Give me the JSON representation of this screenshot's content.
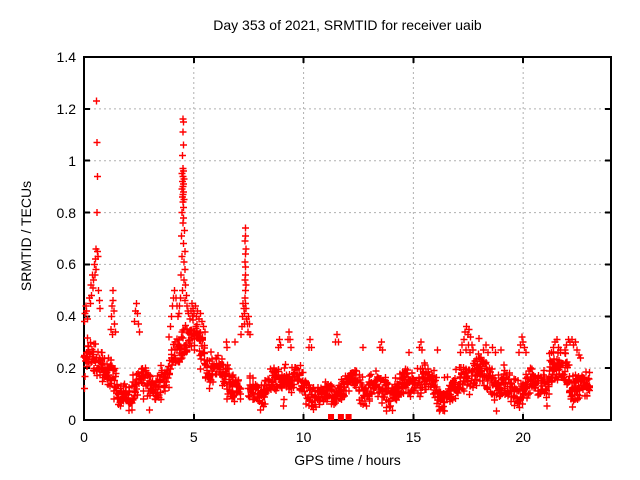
{
  "window": {
    "title": "Day 353 of 2021, SRMTID for receiver uaib"
  },
  "colors": {
    "marker": "#ff0000",
    "grid": "#b0b0b0",
    "frame": "#000000",
    "background": "#ffffff",
    "text": "#000000"
  },
  "chart_data": {
    "type": "scatter",
    "title": "Day 353 of 2021, SRMTID for receiver uaib",
    "xlabel": "GPS time / hours",
    "ylabel": "SRMTID / TECUs",
    "xlim": [
      0,
      24
    ],
    "ylim": [
      0,
      1.4
    ],
    "x_ticks": [
      0,
      5,
      10,
      15,
      20
    ],
    "x_tick_labels": [
      "0",
      "5",
      "10",
      "15",
      "20"
    ],
    "y_ticks": [
      0,
      0.2,
      0.4,
      0.6,
      0.8,
      1,
      1.2,
      1.4
    ],
    "y_tick_labels": [
      "0",
      "0.2",
      "0.4",
      "0.6",
      "0.8",
      "1",
      "1.2",
      "1.4"
    ],
    "grid": "dotted",
    "legend": "none",
    "marker": "plus",
    "marker_color": "#ff0000",
    "data_start_hour": 0.0,
    "data_end_hour": 23.05,
    "zero_value_squares_x": [
      11.25,
      11.7,
      12.05
    ],
    "notable_points": [
      [
        0.57,
        1.23
      ],
      [
        0.6,
        1.07
      ],
      [
        0.62,
        0.94
      ],
      [
        0.6,
        0.8
      ],
      [
        0.55,
        0.66
      ],
      [
        0.61,
        0.65
      ],
      [
        0.64,
        0.63
      ],
      [
        0.52,
        0.62
      ],
      [
        0.48,
        0.6
      ],
      [
        0.55,
        0.58
      ],
      [
        0.5,
        0.56
      ],
      [
        0.44,
        0.54
      ],
      [
        0.4,
        0.51
      ],
      [
        0.35,
        0.48
      ],
      [
        0.3,
        0.45
      ],
      [
        0.26,
        0.47
      ],
      [
        0.33,
        0.52
      ],
      [
        0.38,
        0.56
      ],
      [
        0.66,
        0.5
      ],
      [
        0.7,
        0.46
      ],
      [
        0.74,
        0.43
      ],
      [
        0.05,
        0.41
      ],
      [
        0.08,
        0.44
      ],
      [
        0.12,
        0.42
      ],
      [
        0.03,
        0.38
      ],
      [
        0.17,
        0.39
      ],
      [
        1.22,
        0.35
      ],
      [
        1.25,
        0.4
      ],
      [
        1.28,
        0.44
      ],
      [
        1.31,
        0.5
      ],
      [
        1.33,
        0.46
      ],
      [
        1.36,
        0.42
      ],
      [
        1.39,
        0.37
      ],
      [
        1.3,
        0.33
      ],
      [
        1.43,
        0.34
      ],
      [
        2.3,
        0.38
      ],
      [
        2.35,
        0.42
      ],
      [
        2.4,
        0.45
      ],
      [
        2.44,
        0.41
      ],
      [
        2.48,
        0.37
      ],
      [
        2.52,
        0.34
      ],
      [
        3.88,
        0.32
      ],
      [
        3.93,
        0.36
      ],
      [
        3.98,
        0.4
      ],
      [
        4.03,
        0.44
      ],
      [
        4.08,
        0.47
      ],
      [
        4.13,
        0.5
      ],
      [
        4.18,
        0.47
      ],
      [
        4.23,
        0.44
      ],
      [
        4.27,
        0.4
      ],
      [
        4.5,
        1.16
      ],
      [
        4.54,
        1.15
      ],
      [
        4.5,
        1.11
      ],
      [
        4.52,
        1.06
      ],
      [
        4.49,
        1.02
      ],
      [
        4.5,
        0.97
      ],
      [
        4.53,
        0.96
      ],
      [
        4.47,
        0.95
      ],
      [
        4.51,
        0.94
      ],
      [
        4.55,
        0.93
      ],
      [
        4.49,
        0.92
      ],
      [
        4.52,
        0.91
      ],
      [
        4.5,
        0.9
      ],
      [
        4.46,
        0.89
      ],
      [
        4.53,
        0.88
      ],
      [
        4.51,
        0.87
      ],
      [
        4.48,
        0.86
      ],
      [
        4.55,
        0.85
      ],
      [
        4.5,
        0.84
      ],
      [
        4.52,
        0.82
      ],
      [
        4.47,
        0.8
      ],
      [
        4.54,
        0.78
      ],
      [
        4.5,
        0.76
      ],
      [
        4.57,
        0.73
      ],
      [
        4.44,
        0.71
      ],
      [
        4.52,
        0.68
      ],
      [
        4.59,
        0.65
      ],
      [
        4.46,
        0.63
      ],
      [
        4.55,
        0.61
      ],
      [
        4.61,
        0.58
      ],
      [
        4.42,
        0.56
      ],
      [
        4.56,
        0.54
      ],
      [
        4.63,
        0.52
      ],
      [
        4.48,
        0.5
      ],
      [
        4.66,
        0.48
      ],
      [
        4.4,
        0.47
      ],
      [
        4.59,
        0.46
      ],
      [
        4.69,
        0.44
      ],
      [
        4.73,
        0.42
      ],
      [
        4.36,
        0.44
      ],
      [
        4.77,
        0.41
      ],
      [
        4.32,
        0.41
      ],
      [
        4.82,
        0.39
      ],
      [
        4.87,
        0.42
      ],
      [
        4.92,
        0.45
      ],
      [
        4.97,
        0.43
      ],
      [
        5.02,
        0.41
      ],
      [
        5.07,
        0.44
      ],
      [
        5.12,
        0.4
      ],
      [
        5.18,
        0.42
      ],
      [
        5.24,
        0.39
      ],
      [
        5.3,
        0.41
      ],
      [
        5.37,
        0.38
      ],
      [
        5.44,
        0.36
      ],
      [
        5.52,
        0.34
      ],
      [
        6.48,
        0.3
      ],
      [
        6.52,
        0.28
      ],
      [
        6.88,
        0.3
      ],
      [
        7.35,
        0.74
      ],
      [
        7.36,
        0.71
      ],
      [
        7.34,
        0.69
      ],
      [
        7.37,
        0.66
      ],
      [
        7.35,
        0.64
      ],
      [
        7.33,
        0.61
      ],
      [
        7.36,
        0.59
      ],
      [
        7.35,
        0.56
      ],
      [
        7.34,
        0.54
      ],
      [
        7.37,
        0.52
      ],
      [
        7.35,
        0.5
      ],
      [
        7.33,
        0.47
      ],
      [
        7.36,
        0.45
      ],
      [
        7.38,
        0.43
      ],
      [
        7.32,
        0.41
      ],
      [
        7.4,
        0.39
      ],
      [
        7.28,
        0.43
      ],
      [
        7.25,
        0.45
      ],
      [
        7.22,
        0.4
      ],
      [
        7.44,
        0.37
      ],
      [
        7.3,
        0.37
      ],
      [
        7.47,
        0.34
      ],
      [
        7.19,
        0.36
      ],
      [
        7.5,
        0.4
      ],
      [
        7.53,
        0.37
      ],
      [
        7.56,
        0.33
      ],
      [
        7.15,
        0.33
      ],
      [
        8.85,
        0.28
      ],
      [
        8.9,
        0.31
      ],
      [
        8.95,
        0.29
      ],
      [
        9.28,
        0.31
      ],
      [
        9.33,
        0.34
      ],
      [
        9.38,
        0.31
      ],
      [
        9.43,
        0.28
      ],
      [
        10.24,
        0.28
      ],
      [
        10.3,
        0.31
      ],
      [
        10.36,
        0.28
      ],
      [
        11.45,
        0.3
      ],
      [
        11.52,
        0.33
      ],
      [
        11.58,
        0.3
      ],
      [
        12.7,
        0.28
      ],
      [
        13.48,
        0.28
      ],
      [
        13.54,
        0.3
      ],
      [
        13.6,
        0.27
      ],
      [
        14.8,
        0.26
      ],
      [
        15.28,
        0.28
      ],
      [
        15.34,
        0.3
      ],
      [
        15.4,
        0.27
      ],
      [
        16.1,
        0.27
      ],
      [
        17.15,
        0.26
      ],
      [
        17.22,
        0.29
      ],
      [
        17.3,
        0.31
      ],
      [
        17.36,
        0.34
      ],
      [
        17.42,
        0.36
      ],
      [
        17.48,
        0.33
      ],
      [
        17.54,
        0.35
      ],
      [
        17.6,
        0.32
      ],
      [
        17.66,
        0.29
      ],
      [
        17.72,
        0.27
      ],
      [
        17.5,
        0.29
      ],
      [
        17.4,
        0.27
      ],
      [
        17.58,
        0.26
      ],
      [
        18.2,
        0.27
      ],
      [
        18.3,
        0.29
      ],
      [
        18.4,
        0.26
      ],
      [
        18.6,
        0.28
      ],
      [
        18.75,
        0.26
      ],
      [
        19.0,
        0.27
      ],
      [
        19.82,
        0.26
      ],
      [
        19.88,
        0.29
      ],
      [
        19.94,
        0.32
      ],
      [
        20.0,
        0.3
      ],
      [
        20.06,
        0.28
      ],
      [
        20.12,
        0.26
      ],
      [
        21.3,
        0.26
      ],
      [
        21.38,
        0.28
      ],
      [
        21.46,
        0.3
      ],
      [
        21.54,
        0.31
      ],
      [
        21.62,
        0.28
      ],
      [
        21.7,
        0.26
      ],
      [
        21.9,
        0.27
      ],
      [
        21.98,
        0.29
      ],
      [
        22.06,
        0.31
      ],
      [
        22.14,
        0.3
      ],
      [
        22.22,
        0.31
      ],
      [
        22.3,
        0.29
      ],
      [
        22.38,
        0.3
      ],
      [
        22.46,
        0.27
      ],
      [
        22.54,
        0.25
      ],
      [
        22.62,
        0.24
      ]
    ],
    "baseline_segments": [
      [
        0.0,
        0.9,
        0.2,
        0.22,
        0.08
      ],
      [
        0.9,
        1.5,
        0.22,
        0.15,
        0.08
      ],
      [
        1.5,
        2.3,
        0.12,
        0.12,
        0.06
      ],
      [
        2.3,
        3.0,
        0.15,
        0.1,
        0.06
      ],
      [
        3.0,
        3.85,
        0.11,
        0.15,
        0.06
      ],
      [
        3.85,
        4.4,
        0.2,
        0.3,
        0.08
      ],
      [
        4.4,
        4.8,
        0.33,
        0.35,
        0.07
      ],
      [
        4.8,
        5.5,
        0.35,
        0.28,
        0.07
      ],
      [
        5.5,
        6.3,
        0.21,
        0.15,
        0.06
      ],
      [
        6.3,
        7.15,
        0.14,
        0.14,
        0.06
      ],
      [
        7.45,
        8.3,
        0.15,
        0.12,
        0.06
      ],
      [
        8.3,
        9.6,
        0.12,
        0.14,
        0.06
      ],
      [
        9.6,
        10.8,
        0.14,
        0.12,
        0.06
      ],
      [
        10.8,
        12.2,
        0.11,
        0.11,
        0.05
      ],
      [
        12.2,
        13.2,
        0.12,
        0.13,
        0.06
      ],
      [
        13.2,
        14.2,
        0.14,
        0.13,
        0.06
      ],
      [
        14.2,
        15.1,
        0.12,
        0.13,
        0.06
      ],
      [
        15.1,
        16.2,
        0.14,
        0.12,
        0.06
      ],
      [
        16.2,
        17.1,
        0.12,
        0.12,
        0.06
      ],
      [
        17.1,
        18.1,
        0.17,
        0.16,
        0.07
      ],
      [
        18.1,
        19.4,
        0.15,
        0.13,
        0.06
      ],
      [
        19.4,
        20.4,
        0.13,
        0.15,
        0.06
      ],
      [
        20.4,
        21.2,
        0.11,
        0.12,
        0.05
      ],
      [
        21.2,
        22.5,
        0.17,
        0.17,
        0.07
      ],
      [
        22.5,
        23.05,
        0.15,
        0.14,
        0.06
      ]
    ],
    "baseline_density_per_hour": 40
  }
}
